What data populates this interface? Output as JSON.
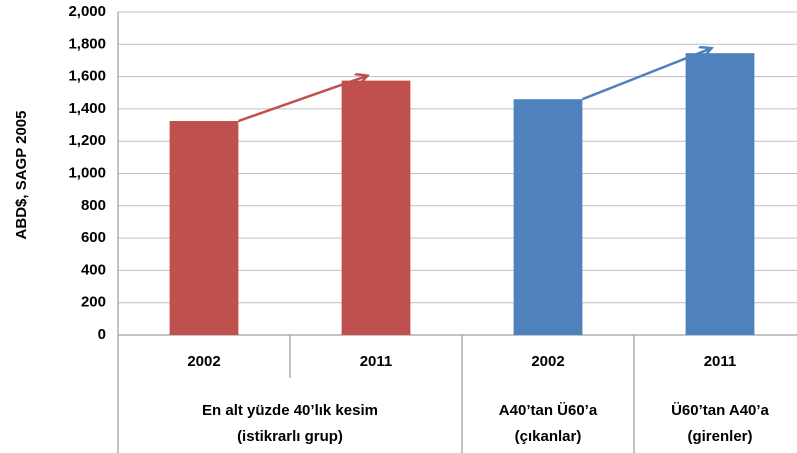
{
  "chart_data": {
    "type": "bar",
    "y_label": "ABD$, SAGP 2005",
    "ylim": [
      0,
      2000
    ],
    "yticks": [
      0,
      200,
      400,
      600,
      800,
      {
        "value": 1000,
        "label": "1,000"
      },
      {
        "value": 1200,
        "label": "1,200"
      },
      {
        "value": 1400,
        "label": "1,400"
      },
      {
        "value": 1600,
        "label": "1,600"
      },
      {
        "value": 1800,
        "label": "1,800"
      },
      {
        "value": 2000,
        "label": "2,000"
      }
    ],
    "grid": true,
    "groups": [
      {
        "label": [
          "En alt yüzde 40’lık kesim",
          "(istikrarlı grup)"
        ],
        "categories": [
          "2002",
          "2011"
        ],
        "values": [
          1325,
          1575
        ],
        "color": "#c0504d"
      },
      {
        "label": [
          "A40’tan Ü60’a",
          "(çıkanlar)"
        ],
        "categories": [
          "2002"
        ],
        "values": [
          1460
        ],
        "color": "#4f81bd"
      },
      {
        "label": [
          "Ü60’tan A40’a",
          "(girenler)"
        ],
        "categories": [
          "2011"
        ],
        "values": [
          1745
        ],
        "color": "#4f81bd"
      }
    ]
  }
}
